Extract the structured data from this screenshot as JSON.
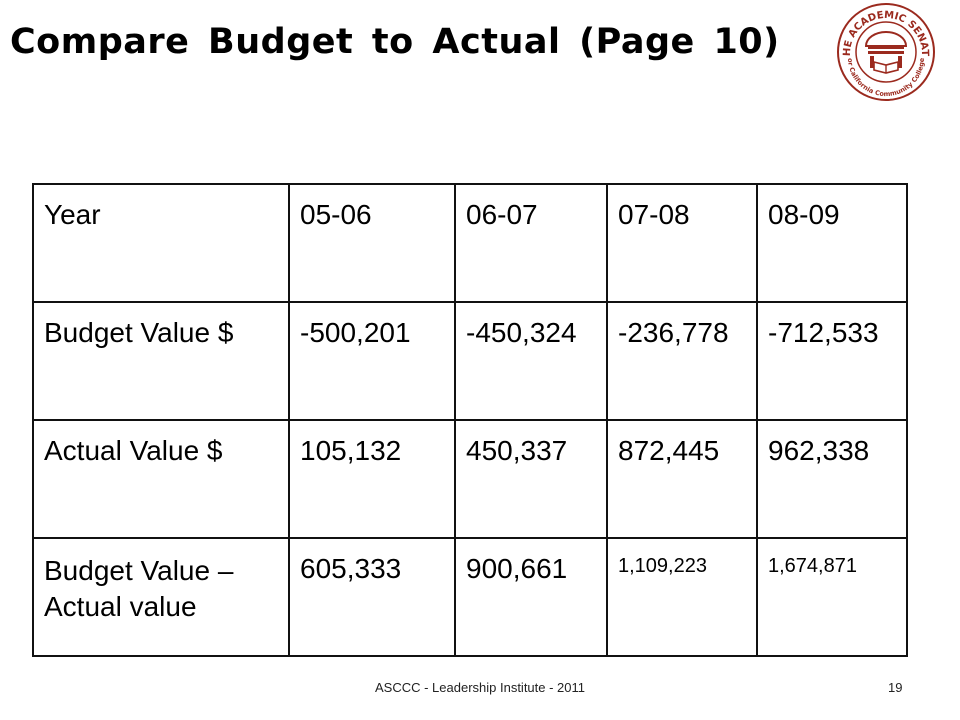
{
  "slide": {
    "title": "Compare Budget to Actual (Page 10)",
    "footer": "ASCCC - Leadership Institute - 2011",
    "page_number": "19"
  },
  "logo": {
    "icon": "academic-senate-seal",
    "color": "#9b2a1e",
    "text_top": "THE ACADEMIC SENATE",
    "text_bottom": "For California Community Colleges"
  },
  "table": {
    "rows": [
      {
        "label": "Year",
        "values": [
          "05-06",
          "06-07",
          "07-08",
          "08-09"
        ]
      },
      {
        "label": "Budget Value $",
        "values": [
          "-500,201",
          "-450,324",
          "-236,778",
          "-712,533"
        ]
      },
      {
        "label": "Actual Value $",
        "values": [
          "105,132",
          "450,337",
          "872,445",
          "962,338"
        ]
      },
      {
        "label": "Budget Value – Actual value",
        "values": [
          "605,333",
          "900,661",
          "1,109,223",
          "1,674,871"
        ]
      }
    ]
  }
}
